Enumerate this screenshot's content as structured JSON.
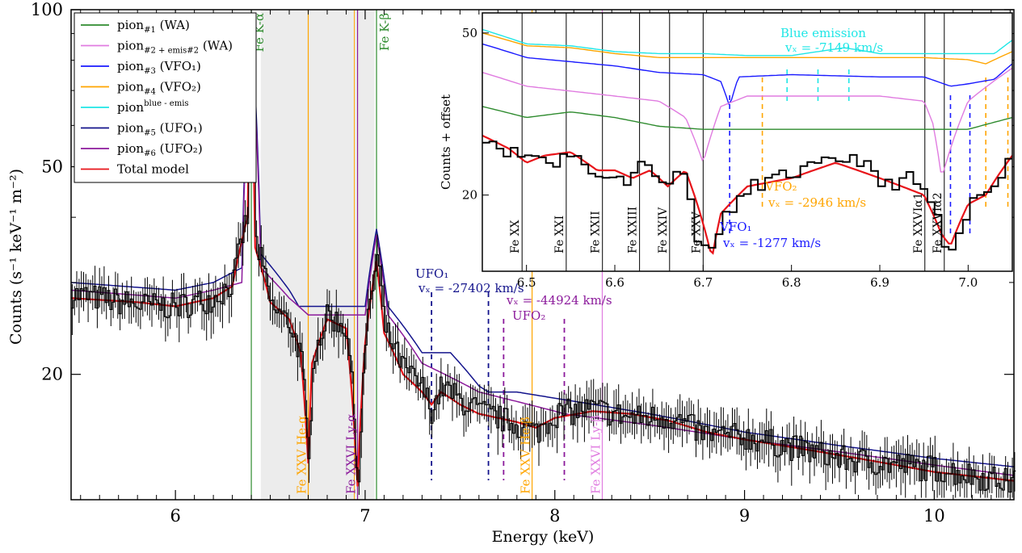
{
  "chart_data": [
    {
      "type": "line",
      "xlabel": "Energy (keV)",
      "ylabel": "Counts (s⁻¹ keV⁻¹ m⁻²)",
      "xlim": [
        5.45,
        10.42
      ],
      "ylim": [
        11.5,
        100
      ],
      "yscale": "log",
      "grid": false,
      "legend_position": "top-left",
      "x_ticks": [
        "6",
        "7",
        "8",
        "9",
        "10"
      ],
      "y_ticks": [
        "20",
        "50",
        "100"
      ],
      "shaded_band_keV": [
        6.45,
        7.05
      ],
      "legend": [
        {
          "base": "pion",
          "sub": "#1",
          "sup": "",
          "tail": " (WA)",
          "color": "#2e8b2e"
        },
        {
          "base": "pion",
          "sub": "#2 + emis#2",
          "sup": "",
          "tail": " (WA)",
          "color": "#e07ce0"
        },
        {
          "base": "pion",
          "sub": "#3",
          "sup": "",
          "tail": " (VFO₁)",
          "color": "#1a1aff"
        },
        {
          "base": "pion",
          "sub": "#4",
          "sup": "",
          "tail": " (VFO₂)",
          "color": "#ffa500"
        },
        {
          "base": "pion",
          "sub": "",
          "sup": "blue - emis",
          "tail": "",
          "color": "#1fe6e6"
        },
        {
          "base": "pion",
          "sub": "#5",
          "sup": "",
          "tail": " (UFO₁)",
          "color": "#14148c"
        },
        {
          "base": "pion",
          "sub": "#6",
          "sup": "",
          "tail": " (UFO₂)",
          "color": "#8b1a9b"
        },
        {
          "base": "Total model",
          "sub": "",
          "sup": "",
          "tail": "",
          "color": "#e8141a"
        }
      ],
      "line_labels": [
        {
          "text": "Fe K-α",
          "x": 6.4,
          "color": "#2e8b2e"
        },
        {
          "text": "Fe K-β",
          "x": 7.06,
          "color": "#2e8b2e"
        },
        {
          "text": "Fe XXV He-α",
          "x": 6.7,
          "color": "#ffa500"
        },
        {
          "text": "Fe XXVI Ly-α",
          "x": 6.96,
          "color": "#8b1a9b"
        },
        {
          "text": "Fe XXV He-β",
          "x": 7.88,
          "color": "#ffa500"
        },
        {
          "text": "Fe XXVI Ly-β",
          "x": 8.25,
          "color": "#e07ce0"
        }
      ],
      "ufo_labels": {
        "ufo1": "UFO₁",
        "ufo1_vz": "vₓ = -27402 km/s",
        "ufo2": "UFO₂",
        "ufo2_vz": "vₓ = -44924 km/s"
      },
      "ufo_dashed_x_keV": {
        "ufo1": [
          7.35,
          7.65
        ],
        "ufo2": [
          7.73,
          8.05
        ]
      },
      "series": [
        {
          "name": "pion#5 (UFO1)",
          "color": "#14148c",
          "x": [
            5.45,
            6.0,
            6.2,
            6.35,
            6.4,
            6.45,
            6.6,
            6.65,
            6.7,
            6.9,
            7.0,
            7.06,
            7.12,
            7.3,
            7.45,
            7.6,
            7.65,
            7.8,
            8.0,
            8.5,
            9.0,
            9.5,
            10.0,
            10.42
          ],
          "y": [
            30,
            29,
            30,
            32,
            95,
            34,
            29,
            27,
            27,
            27,
            27,
            38,
            27,
            22,
            22,
            19,
            18.5,
            18.5,
            18,
            16.8,
            15.5,
            14.6,
            13.8,
            13.3
          ]
        },
        {
          "name": "pion#6 (UFO2)",
          "color": "#8b1a9b",
          "x": [
            5.45,
            6.0,
            6.2,
            6.35,
            6.4,
            6.45,
            6.6,
            6.7,
            6.9,
            7.0,
            7.06,
            7.12,
            7.3,
            7.6,
            7.73,
            8.0,
            8.05,
            8.5,
            9.0,
            9.5,
            10.0,
            10.42
          ],
          "y": [
            29,
            28,
            29,
            30,
            90,
            32,
            28,
            26,
            26,
            26,
            37,
            26,
            21,
            18.5,
            18,
            17,
            16.8,
            16,
            15,
            14.2,
            13.4,
            12.8
          ]
        },
        {
          "name": "Total model",
          "color": "#e8141a",
          "x": [
            5.45,
            5.8,
            6.0,
            6.2,
            6.3,
            6.38,
            6.4,
            6.42,
            6.5,
            6.6,
            6.66,
            6.7,
            6.72,
            6.8,
            6.9,
            6.96,
            7.0,
            7.06,
            7.1,
            7.2,
            7.3,
            7.35,
            7.4,
            7.5,
            7.6,
            7.8,
            7.9,
            8.0,
            8.2,
            8.4,
            8.6,
            8.8,
            9.0,
            9.5,
            10.0,
            10.42
          ],
          "y": [
            28,
            27.5,
            27,
            28,
            29.5,
            40,
            82,
            35,
            27.5,
            25.5,
            22,
            13.5,
            21,
            25.5,
            24.5,
            12.2,
            23,
            33,
            24,
            20,
            18.5,
            17.5,
            18.5,
            17.5,
            16.8,
            16.2,
            15.8,
            16.5,
            17,
            16.8,
            16.3,
            15.5,
            15,
            14,
            13,
            12.5
          ]
        },
        {
          "name": "data",
          "color": "#000000",
          "x": [
            5.45,
            5.6,
            5.8,
            6.0,
            6.2,
            6.3,
            6.38,
            6.4,
            6.42,
            6.5,
            6.6,
            6.66,
            6.7,
            6.72,
            6.8,
            6.9,
            6.96,
            7.0,
            7.06,
            7.1,
            7.2,
            7.3,
            7.35,
            7.4,
            7.5,
            7.6,
            7.8,
            7.9,
            8.0,
            8.2,
            8.4,
            8.6,
            8.8,
            9.0,
            9.5,
            10.0,
            10.42
          ],
          "y": [
            28.5,
            28,
            27.2,
            27,
            28,
            30,
            41,
            84,
            36,
            27,
            25,
            21.5,
            13,
            21.5,
            26,
            24.5,
            12,
            23.5,
            34,
            24.5,
            20.5,
            18.8,
            17,
            19,
            17.8,
            17,
            16,
            15.5,
            16.8,
            17.2,
            16.5,
            16.6,
            15.3,
            15.2,
            13.8,
            13.2,
            12.4
          ]
        }
      ]
    },
    {
      "type": "line",
      "inset": true,
      "ylabel": "Counts + offset",
      "xlim": [
        6.45,
        7.05
      ],
      "ylim": [
        13,
        56
      ],
      "yscale": "log",
      "x_ticks": [
        "6.5",
        "6.6",
        "6.7",
        "6.8",
        "6.9",
        "7.0"
      ],
      "y_ticks": [
        "20",
        "50"
      ],
      "ion_lines": [
        {
          "label": "Fe XX",
          "x": 6.495
        },
        {
          "label": "Fe XXI",
          "x": 6.545
        },
        {
          "label": "Fe XXII",
          "x": 6.586
        },
        {
          "label": "Fe XXIII",
          "x": 6.628
        },
        {
          "label": "Fe XXIV",
          "x": 6.662
        },
        {
          "label": "Fe XXV",
          "x": 6.7
        },
        {
          "label": "Fe XXVIα1",
          "x": 6.951
        },
        {
          "label": "Fe XXVIα2",
          "x": 6.973
        }
      ],
      "annotations": {
        "blue_title": "Blue emission",
        "blue_vz": "vₓ = -7149 km/s",
        "vfo2": "VFO₂",
        "vfo2_vz": "vₓ = -2946 km/s",
        "vfo1": "VFO₁",
        "vfo1_vz": "vₓ = -1277 km/s"
      },
      "dashed_markers_keV": {
        "blue_emission": [
          6.795,
          6.83,
          6.865
        ],
        "vfo2": [
          6.767,
          7.02,
          7.045
        ],
        "vfo1": [
          6.73,
          6.98,
          7.002
        ]
      },
      "series": [
        {
          "name": "pion blue-emis",
          "color": "#1fe6e6",
          "x": [
            6.45,
            6.5,
            6.55,
            6.6,
            6.65,
            6.7,
            6.75,
            6.8,
            6.83,
            6.86,
            6.9,
            6.95,
            7.0,
            7.03,
            7.05
          ],
          "y": [
            51,
            47,
            46.5,
            45,
            44.5,
            44.5,
            44,
            44,
            45,
            46,
            44.5,
            44.5,
            44.5,
            44.5,
            48
          ]
        },
        {
          "name": "pion#4 (VFO2)",
          "color": "#ffa500",
          "x": [
            6.45,
            6.5,
            6.55,
            6.6,
            6.65,
            6.7,
            6.75,
            6.8,
            6.85,
            6.9,
            6.95,
            7.0,
            7.02,
            7.05
          ],
          "y": [
            50,
            46.5,
            46,
            44.5,
            43.5,
            43.5,
            43.5,
            43.5,
            43.5,
            43.5,
            43.5,
            43,
            42,
            45
          ]
        },
        {
          "name": "pion#3 (VFO1)",
          "color": "#1a1aff",
          "x": [
            6.45,
            6.5,
            6.55,
            6.6,
            6.65,
            6.7,
            6.72,
            6.73,
            6.74,
            6.8,
            6.9,
            6.95,
            6.98,
            7.0,
            7.03,
            7.05
          ],
          "y": [
            47,
            43.5,
            42.5,
            41.5,
            40,
            39.5,
            38,
            33,
            39,
            39.5,
            39,
            39,
            37,
            37.5,
            38.5,
            42
          ]
        },
        {
          "name": "pion#2 + emis#2 (WA)",
          "color": "#e07ce0",
          "x": [
            6.45,
            6.5,
            6.55,
            6.6,
            6.65,
            6.68,
            6.7,
            6.72,
            6.75,
            6.8,
            6.9,
            6.95,
            6.96,
            6.97,
            7.0,
            7.05
          ],
          "y": [
            40,
            37,
            36,
            35,
            34,
            31,
            24,
            33,
            35,
            35,
            35,
            34,
            30,
            22,
            34,
            41
          ]
        },
        {
          "name": "pion#1 (WA)",
          "color": "#2e8b2e",
          "x": [
            6.45,
            6.5,
            6.55,
            6.6,
            6.65,
            6.7,
            6.8,
            6.9,
            7.0,
            7.05
          ],
          "y": [
            33,
            31,
            32,
            31,
            29.5,
            29,
            29,
            29,
            29,
            31
          ]
        },
        {
          "name": "Total model",
          "color": "#e8141a",
          "x": [
            6.45,
            6.48,
            6.5,
            6.52,
            6.55,
            6.58,
            6.6,
            6.62,
            6.64,
            6.66,
            6.68,
            6.7,
            6.71,
            6.72,
            6.73,
            6.75,
            6.8,
            6.85,
            6.9,
            6.95,
            6.96,
            6.97,
            6.98,
            7.0,
            7.02,
            7.05
          ],
          "y": [
            28,
            26,
            24,
            25,
            25.5,
            23,
            23,
            22,
            23,
            21,
            23,
            17,
            14,
            18,
            19,
            21,
            22,
            24,
            22,
            20,
            18,
            16,
            15,
            19,
            20,
            25
          ]
        },
        {
          "name": "data",
          "color": "#000000",
          "x": [
            6.45,
            6.47,
            6.49,
            6.51,
            6.53,
            6.55,
            6.57,
            6.59,
            6.61,
            6.63,
            6.65,
            6.67,
            6.69,
            6.7,
            6.71,
            6.72,
            6.73,
            6.75,
            6.78,
            6.81,
            6.84,
            6.87,
            6.9,
            6.93,
            6.95,
            6.96,
            6.97,
            6.975,
            6.98,
            7.0,
            7.02,
            7.05
          ],
          "y": [
            28,
            26,
            25,
            25,
            24,
            26,
            22,
            23,
            21,
            25,
            21,
            24,
            16,
            15,
            14,
            19,
            18,
            21,
            22,
            23,
            24,
            25,
            21,
            22,
            20,
            18,
            15,
            14.5,
            14,
            19,
            21,
            25
          ]
        }
      ]
    }
  ]
}
